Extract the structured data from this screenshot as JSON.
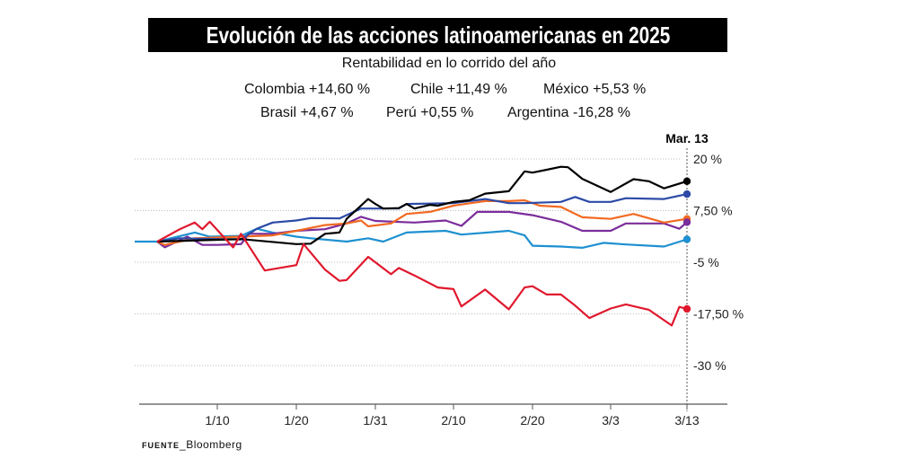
{
  "title": "Evolución de las acciones latinoamericanas en 2025",
  "subtitle": "Rentabilidad en lo corrido del año",
  "source_label": "FUENTE",
  "source": "Bloomberg",
  "chart_data": {
    "type": "line",
    "title": "Evolución de las acciones latinoamericanas en 2025",
    "subtitle": "Rentabilidad en lo corrido del año",
    "end_label": "Mar. 13",
    "legend": [
      {
        "label": "Colombia +14,60 %"
      },
      {
        "label": "Chile +11,49 %"
      },
      {
        "label": "México +5,53 %"
      },
      {
        "label": "Brasil +4,67 %"
      },
      {
        "label": "Perú +0,55 %"
      },
      {
        "label": "Argentina -16,28 %"
      }
    ],
    "x_ticks": [
      "1/10",
      "1/20",
      "1/31",
      "2/10",
      "2/20",
      "3/3",
      "3/13"
    ],
    "y_ticks": [
      {
        "v": 20,
        "label": "20 %"
      },
      {
        "v": 7.5,
        "label": "7,50 %"
      },
      {
        "v": -5,
        "label": "-5 %"
      },
      {
        "v": -17.5,
        "label": "-17,50 %"
      },
      {
        "v": -30,
        "label": "-30 %"
      }
    ],
    "ylim": [
      -37,
      22
    ],
    "grid": true,
    "series": [
      {
        "name": "Colombia",
        "color": "#000000",
        "points": [
          [
            "2025-01-02",
            0
          ],
          [
            "2025-01-13",
            0.6
          ],
          [
            "2025-01-20",
            -0.6
          ],
          [
            "2025-01-22",
            -0.5
          ],
          [
            "2025-01-24",
            1.9
          ],
          [
            "2025-01-26",
            2.2
          ],
          [
            "2025-01-27",
            5.5
          ],
          [
            "2025-01-30",
            10.3
          ],
          [
            "2025-01-31",
            9.1
          ],
          [
            "2025-02-01",
            8
          ],
          [
            "2025-02-03",
            8.1
          ],
          [
            "2025-02-04",
            9.1
          ],
          [
            "2025-02-05",
            8
          ],
          [
            "2025-02-07",
            8.9
          ],
          [
            "2025-02-08",
            8.7
          ],
          [
            "2025-02-10",
            9.6
          ],
          [
            "2025-02-12",
            10
          ],
          [
            "2025-02-14",
            11.6
          ],
          [
            "2025-02-17",
            12.2
          ],
          [
            "2025-02-19",
            17
          ],
          [
            "2025-02-20",
            16.7
          ],
          [
            "2025-02-22",
            17.4
          ],
          [
            "2025-02-24",
            18.1
          ],
          [
            "2025-02-25",
            18
          ],
          [
            "2025-02-27",
            15.2
          ],
          [
            "2025-03-03",
            12
          ],
          [
            "2025-03-06",
            15.1
          ],
          [
            "2025-03-08",
            14.6
          ],
          [
            "2025-03-10",
            12.9
          ],
          [
            "2025-03-13",
            14.6
          ]
        ]
      },
      {
        "name": "Chile",
        "color": "#2c4aa6",
        "points": [
          [
            "2025-01-02",
            0
          ],
          [
            "2025-01-05",
            0.8
          ],
          [
            "2025-01-13",
            0.5
          ],
          [
            "2025-01-15",
            3.1
          ],
          [
            "2025-01-17",
            4.6
          ],
          [
            "2025-01-20",
            5.1
          ],
          [
            "2025-01-22",
            5.7
          ],
          [
            "2025-01-26",
            5.6
          ],
          [
            "2025-01-29",
            8
          ],
          [
            "2025-01-31",
            8
          ],
          [
            "2025-02-03",
            8
          ],
          [
            "2025-02-04",
            9.1
          ],
          [
            "2025-02-10",
            9.3
          ],
          [
            "2025-02-14",
            10.3
          ],
          [
            "2025-02-17",
            9.3
          ],
          [
            "2025-02-19",
            9.3
          ],
          [
            "2025-02-24",
            9.6
          ],
          [
            "2025-02-26",
            10.8
          ],
          [
            "2025-02-28",
            9.6
          ],
          [
            "2025-03-03",
            9.6
          ],
          [
            "2025-03-05",
            10.5
          ],
          [
            "2025-03-10",
            10.3
          ],
          [
            "2025-03-13",
            11.5
          ]
        ]
      },
      {
        "name": "México",
        "color": "#f26a21",
        "points": [
          [
            "2025-01-02",
            0
          ],
          [
            "2025-01-03",
            -0.8
          ],
          [
            "2025-01-07",
            0.8
          ],
          [
            "2025-01-13",
            1.2
          ],
          [
            "2025-01-17",
            1.5
          ],
          [
            "2025-01-20",
            2.6
          ],
          [
            "2025-01-24",
            4
          ],
          [
            "2025-01-27",
            4.4
          ],
          [
            "2025-01-29",
            5.1
          ],
          [
            "2025-01-30",
            3.7
          ],
          [
            "2025-02-02",
            4.4
          ],
          [
            "2025-02-04",
            6.7
          ],
          [
            "2025-02-07",
            7.2
          ],
          [
            "2025-02-10",
            8.7
          ],
          [
            "2025-02-14",
            9.8
          ],
          [
            "2025-02-17",
            9.8
          ],
          [
            "2025-02-19",
            10
          ],
          [
            "2025-02-21",
            8.7
          ],
          [
            "2025-02-24",
            8.4
          ],
          [
            "2025-02-27",
            5.9
          ],
          [
            "2025-03-03",
            5.5
          ],
          [
            "2025-03-06",
            6.7
          ],
          [
            "2025-03-10",
            4.6
          ],
          [
            "2025-03-13",
            5.5
          ]
        ]
      },
      {
        "name": "Brasil",
        "color": "#7b2d9b",
        "points": [
          [
            "2025-01-02",
            0
          ],
          [
            "2025-01-03",
            -1.4
          ],
          [
            "2025-01-06",
            1.2
          ],
          [
            "2025-01-08",
            -0.8
          ],
          [
            "2025-01-10",
            -0.8
          ],
          [
            "2025-01-13",
            -0.6
          ],
          [
            "2025-01-14",
            1.9
          ],
          [
            "2025-01-17",
            1.9
          ],
          [
            "2025-01-20",
            2.6
          ],
          [
            "2025-01-24",
            3
          ],
          [
            "2025-01-27",
            4.4
          ],
          [
            "2025-01-29",
            6
          ],
          [
            "2025-01-31",
            5
          ],
          [
            "2025-02-05",
            4.6
          ],
          [
            "2025-02-09",
            5.1
          ],
          [
            "2025-02-11",
            3.8
          ],
          [
            "2025-02-13",
            7.2
          ],
          [
            "2025-02-17",
            7.2
          ],
          [
            "2025-02-20",
            6.4
          ],
          [
            "2025-02-24",
            4.8
          ],
          [
            "2025-02-27",
            2.6
          ],
          [
            "2025-03-03",
            2.6
          ],
          [
            "2025-03-05",
            4.4
          ],
          [
            "2025-03-10",
            4.4
          ],
          [
            "2025-03-12",
            3.1
          ],
          [
            "2025-03-13",
            4.7
          ]
        ]
      },
      {
        "name": "Perú",
        "color": "#1e90d0",
        "points": [
          [
            "2024-12-30",
            0
          ],
          [
            "2025-01-02",
            0
          ],
          [
            "2025-01-07",
            2.2
          ],
          [
            "2025-01-09",
            1.2
          ],
          [
            "2025-01-13",
            1.4
          ],
          [
            "2025-01-15",
            3.1
          ],
          [
            "2025-01-17",
            2.2
          ],
          [
            "2025-01-20",
            1.2
          ],
          [
            "2025-01-22",
            0.8
          ],
          [
            "2025-01-27",
            0
          ],
          [
            "2025-01-30",
            0.8
          ],
          [
            "2025-02-01",
            0
          ],
          [
            "2025-02-04",
            2.2
          ],
          [
            "2025-02-09",
            2.6
          ],
          [
            "2025-02-11",
            1.7
          ],
          [
            "2025-02-17",
            2.6
          ],
          [
            "2025-02-19",
            1.5
          ],
          [
            "2025-02-20",
            -1
          ],
          [
            "2025-02-24",
            -1.2
          ],
          [
            "2025-02-27",
            -1.5
          ],
          [
            "2025-03-02",
            -0.3
          ],
          [
            "2025-03-05",
            -0.7
          ],
          [
            "2025-03-10",
            -1.2
          ],
          [
            "2025-03-13",
            0.55
          ]
        ]
      },
      {
        "name": "Argentina",
        "color": "#e0182d",
        "points": [
          [
            "2025-01-02",
            0
          ],
          [
            "2025-01-05",
            3
          ],
          [
            "2025-01-07",
            4.6
          ],
          [
            "2025-01-08",
            3
          ],
          [
            "2025-01-09",
            4.8
          ],
          [
            "2025-01-12",
            -1.4
          ],
          [
            "2025-01-13",
            1.9
          ],
          [
            "2025-01-16",
            -7
          ],
          [
            "2025-01-20",
            -5.7
          ],
          [
            "2025-01-21",
            -0.6
          ],
          [
            "2025-01-24",
            -6.8
          ],
          [
            "2025-01-26",
            -9.5
          ],
          [
            "2025-01-27",
            -9.3
          ],
          [
            "2025-01-30",
            -3.7
          ],
          [
            "2025-02-02",
            -7.9
          ],
          [
            "2025-02-03",
            -6.4
          ],
          [
            "2025-02-05",
            -8.2
          ],
          [
            "2025-02-08",
            -11.1
          ],
          [
            "2025-02-10",
            -11.5
          ],
          [
            "2025-02-11",
            -15.7
          ],
          [
            "2025-02-14",
            -11.6
          ],
          [
            "2025-02-17",
            -16.4
          ],
          [
            "2025-02-19",
            -11.1
          ],
          [
            "2025-02-20",
            -10.8
          ],
          [
            "2025-02-22",
            -12.8
          ],
          [
            "2025-02-24",
            -12.8
          ],
          [
            "2025-02-26",
            -15.5
          ],
          [
            "2025-02-28",
            -18.5
          ],
          [
            "2025-03-03",
            -16.2
          ],
          [
            "2025-03-05",
            -15.2
          ],
          [
            "2025-03-08",
            -16.5
          ],
          [
            "2025-03-11",
            -20.3
          ],
          [
            "2025-03-12",
            -15.8
          ],
          [
            "2025-03-13",
            -16.3
          ]
        ]
      }
    ]
  }
}
